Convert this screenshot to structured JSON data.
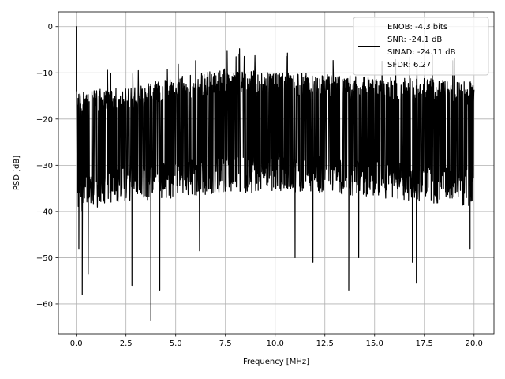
{
  "chart_data": {
    "type": "line",
    "title": "",
    "xlabel": "Frequency [MHz]",
    "ylabel": "PSD [dB]",
    "xlim": [
      -0.9,
      21.0
    ],
    "ylim": [
      -66.5,
      3.2
    ],
    "xticks": [
      0.0,
      2.5,
      5.0,
      7.5,
      10.0,
      12.5,
      15.0,
      17.5,
      20.0
    ],
    "xtick_labels": [
      "0.0",
      "2.5",
      "5.0",
      "7.5",
      "10.0",
      "12.5",
      "15.0",
      "17.5",
      "20.0"
    ],
    "yticks": [
      0,
      -10,
      -20,
      -30,
      -40,
      -50,
      -60
    ],
    "ytick_labels": [
      "0",
      "−10",
      "−20",
      "−30",
      "−40",
      "−50",
      "−60"
    ],
    "grid": true,
    "legend_position": "top-right",
    "legend_lines": [
      "ENOB: -4.3 bits",
      "SNR: -24.1 dB",
      "SINAD: -24.11 dB",
      "SFDR: 6.27"
    ],
    "series_color": "#000000",
    "series": [
      {
        "x_start": 0.0,
        "x_end": 20.0,
        "description_of_shape": "dense noise floor",
        "peak": {
          "x": 0.0,
          "y": 0.0
        },
        "noise_upper_envelope": [
          [
            0.1,
            -14
          ],
          [
            2.5,
            -13
          ],
          [
            5.0,
            -11
          ],
          [
            7.5,
            -9
          ],
          [
            10.0,
            -10
          ],
          [
            12.5,
            -10
          ],
          [
            15.0,
            -11
          ],
          [
            17.5,
            -11
          ],
          [
            20.0,
            -12
          ]
        ],
        "noise_lower_envelope": [
          [
            0.1,
            -40
          ],
          [
            2.5,
            -38
          ],
          [
            5.0,
            -37
          ],
          [
            7.5,
            -36
          ],
          [
            10.0,
            -36
          ],
          [
            12.5,
            -36
          ],
          [
            15.0,
            -37
          ],
          [
            17.5,
            -38
          ],
          [
            20.0,
            -39
          ]
        ],
        "deep_nulls": [
          [
            0.13,
            -48
          ],
          [
            0.3,
            -58
          ],
          [
            0.6,
            -53.5
          ],
          [
            2.8,
            -56
          ],
          [
            3.75,
            -63.5
          ],
          [
            4.2,
            -57
          ],
          [
            6.2,
            -48.5
          ],
          [
            11.0,
            -50
          ],
          [
            11.9,
            -51
          ],
          [
            13.7,
            -57
          ],
          [
            14.2,
            -50
          ],
          [
            16.9,
            -51
          ],
          [
            17.1,
            -55.5
          ],
          [
            19.8,
            -48
          ]
        ]
      }
    ]
  }
}
